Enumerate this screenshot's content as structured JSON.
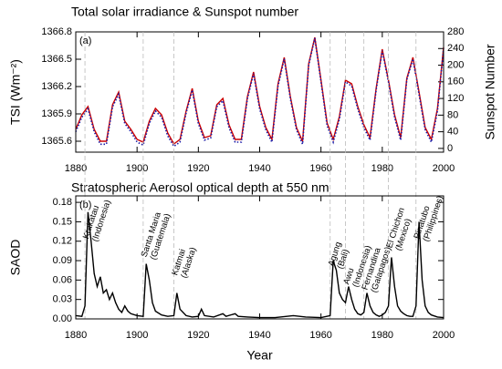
{
  "chart_data": [
    {
      "type": "line",
      "title": "Total solar irradiance & Sunspot number",
      "panel_label": "(a)",
      "ylabel": "TSI (Wm⁻²)",
      "y2label": "Sunspot Number",
      "ylabel_color": "#cc0000",
      "y2label_color": "#000080",
      "xlim": [
        1880,
        2000
      ],
      "xticks": [
        1880,
        1900,
        1920,
        1940,
        1960,
        1980,
        2000
      ],
      "ylim": [
        1365.48,
        1366.8
      ],
      "yticks": [
        1365.6,
        1365.9,
        1366.2,
        1366.5,
        1366.8
      ],
      "y2lim": [
        -9,
        280
      ],
      "y2ticks": [
        0,
        40,
        80,
        120,
        160,
        200,
        240,
        280
      ],
      "x": [
        1880,
        1882,
        1884,
        1886,
        1888,
        1890,
        1892,
        1894,
        1896,
        1898,
        1900,
        1902,
        1904,
        1906,
        1908,
        1910,
        1912,
        1914,
        1916,
        1918,
        1920,
        1922,
        1924,
        1926,
        1928,
        1930,
        1932,
        1934,
        1936,
        1938,
        1940,
        1942,
        1944,
        1946,
        1948,
        1950,
        1952,
        1954,
        1956,
        1958,
        1960,
        1962,
        1964,
        1966,
        1968,
        1970,
        1972,
        1974,
        1976,
        1978,
        1980,
        1982,
        1984,
        1986,
        1988,
        1990,
        1992,
        1994,
        1996,
        1998,
        2000
      ],
      "series": [
        {
          "color": "#cc0000",
          "dash": "solid",
          "axis": "y",
          "values": [
            1365.73,
            1365.89,
            1365.98,
            1365.73,
            1365.6,
            1365.6,
            1366.0,
            1366.14,
            1365.82,
            1365.73,
            1365.62,
            1365.59,
            1365.82,
            1365.96,
            1365.89,
            1365.69,
            1365.57,
            1365.62,
            1365.93,
            1366.18,
            1365.82,
            1365.64,
            1365.66,
            1366.0,
            1366.07,
            1365.78,
            1365.62,
            1365.62,
            1366.09,
            1366.36,
            1365.98,
            1365.75,
            1365.62,
            1366.23,
            1366.52,
            1366.09,
            1365.75,
            1365.6,
            1366.45,
            1366.74,
            1366.27,
            1365.8,
            1365.62,
            1365.87,
            1366.27,
            1366.23,
            1365.98,
            1365.78,
            1365.64,
            1366.18,
            1366.61,
            1366.27,
            1365.89,
            1365.64,
            1366.29,
            1366.52,
            1366.14,
            1365.75,
            1365.62,
            1365.96,
            1366.63
          ]
        },
        {
          "color": "#1a1aa6",
          "dash": "dotted",
          "axis": "y2",
          "values": [
            40,
            75,
            95,
            40,
            10,
            10,
            100,
            130,
            60,
            40,
            15,
            8,
            60,
            90,
            75,
            30,
            5,
            15,
            85,
            140,
            60,
            20,
            25,
            100,
            115,
            50,
            15,
            15,
            120,
            180,
            95,
            45,
            15,
            150,
            215,
            120,
            45,
            10,
            200,
            265,
            160,
            55,
            15,
            70,
            160,
            150,
            95,
            50,
            20,
            140,
            235,
            160,
            75,
            20,
            165,
            215,
            130,
            45,
            15,
            90,
            240
          ]
        }
      ]
    },
    {
      "type": "line",
      "title": "Stratospheric Aerosol optical depth at 550 nm",
      "panel_label": "(b)",
      "ylabel": "SAOD",
      "xlabel": "Year",
      "xlim": [
        1880,
        2000
      ],
      "xticks": [
        1880,
        1900,
        1920,
        1940,
        1960,
        1980,
        2000
      ],
      "ylim": [
        0,
        0.19
      ],
      "yticks": [
        {
          "value": 0,
          "label": "0.00"
        },
        0.03,
        0.06,
        0.09,
        0.12,
        0.15,
        0.18
      ],
      "x": [
        1880,
        1882,
        1883,
        1884,
        1885,
        1886,
        1887,
        1888,
        1889,
        1890,
        1891,
        1892,
        1893,
        1894,
        1895,
        1896,
        1897,
        1898,
        1900,
        1902,
        1903,
        1904,
        1905,
        1906,
        1908,
        1910,
        1912,
        1913,
        1914,
        1916,
        1918,
        1920,
        1921,
        1922,
        1925,
        1928,
        1929,
        1932,
        1933,
        1936,
        1940,
        1945,
        1951,
        1955,
        1960,
        1963,
        1964,
        1965,
        1966,
        1967,
        1968,
        1969,
        1970,
        1971,
        1972,
        1973,
        1974,
        1975,
        1976,
        1977,
        1978,
        1979,
        1980,
        1981,
        1982,
        1983,
        1984,
        1985,
        1986,
        1987,
        1988,
        1989,
        1990,
        1991,
        1992,
        1993,
        1994,
        1995,
        1996,
        1998,
        2000
      ],
      "series": [
        {
          "color": "#000000",
          "dash": "solid",
          "axis": "y",
          "values": [
            0.005,
            0.004,
            0.02,
            0.165,
            0.12,
            0.07,
            0.05,
            0.065,
            0.04,
            0.045,
            0.03,
            0.04,
            0.025,
            0.015,
            0.01,
            0.02,
            0.012,
            0.008,
            0.005,
            0.004,
            0.085,
            0.06,
            0.025,
            0.012,
            0.006,
            0.004,
            0.005,
            0.04,
            0.015,
            0.005,
            0.003,
            0.004,
            0.015,
            0.005,
            0.003,
            0.008,
            0.004,
            0.008,
            0.004,
            0.003,
            0.002,
            0.002,
            0.005,
            0.003,
            0.002,
            0.005,
            0.09,
            0.075,
            0.04,
            0.03,
            0.025,
            0.05,
            0.03,
            0.015,
            0.008,
            0.006,
            0.01,
            0.04,
            0.02,
            0.01,
            0.006,
            0.004,
            0.006,
            0.01,
            0.02,
            0.095,
            0.05,
            0.02,
            0.012,
            0.008,
            0.005,
            0.004,
            0.004,
            0.02,
            0.15,
            0.06,
            0.02,
            0.01,
            0.006,
            0.003,
            0.002
          ]
        }
      ],
      "annotations": [
        {
          "name": "Krakatau",
          "region": "(Indonesia)",
          "x": 1883
        },
        {
          "name": "Santa Maria",
          "region": "(Guatemala)",
          "x": 1902
        },
        {
          "name": "Katmai",
          "region": "(Alaska)",
          "x": 1912
        },
        {
          "name": "Agung",
          "region": "(Bali)",
          "x": 1963
        },
        {
          "name": "Awu",
          "region": "(Indonesia)",
          "x": 1968
        },
        {
          "name": "Fernandina",
          "region": "(Galapagos)",
          "x": 1974
        },
        {
          "name": "El Chichon",
          "region": "(Mexico)",
          "x": 1982
        },
        {
          "name": "Pinatubo",
          "region": "(Philippines)",
          "x": 1991
        }
      ]
    }
  ]
}
